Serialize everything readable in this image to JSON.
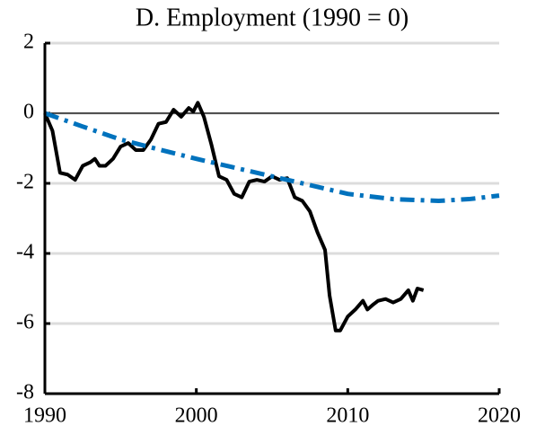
{
  "chart_data": {
    "type": "line",
    "title": "D. Employment (1990 = 0)",
    "xlim": [
      1990,
      2020
    ],
    "xticks": [
      1990,
      2000,
      2010,
      2020
    ],
    "ylim": [
      -8,
      2
    ],
    "yticks": [
      -8,
      -6,
      -4,
      -2,
      0,
      2
    ],
    "grid": true,
    "hline": 0,
    "series": [
      {
        "color": "#000000",
        "style": "solid",
        "x": [
          1990,
          1990.5,
          1991,
          1991.5,
          1992,
          1992.5,
          1993,
          1993.3,
          1993.6,
          1994,
          1994.5,
          1995,
          1995.5,
          1996,
          1996.5,
          1997,
          1997.5,
          1998,
          1998.5,
          1999,
          1999.5,
          1999.8,
          2000.1,
          2000.5,
          2001,
          2001.5,
          2002,
          2002.5,
          2003,
          2003.5,
          2004,
          2004.5,
          2005,
          2005.5,
          2006,
          2006.5,
          2007,
          2007.5,
          2008,
          2008.5,
          2008.8,
          2009.2,
          2009.5,
          2010,
          2010.5,
          2011,
          2011.3,
          2011.7,
          2012,
          2012.5,
          2013,
          2013.5,
          2014,
          2014.3,
          2014.6,
          2015
        ],
        "values": [
          0,
          -0.5,
          -1.7,
          -1.75,
          -1.9,
          -1.5,
          -1.4,
          -1.3,
          -1.5,
          -1.5,
          -1.3,
          -0.95,
          -0.85,
          -1.05,
          -1.05,
          -0.75,
          -0.3,
          -0.25,
          0.1,
          -0.1,
          0.15,
          0.05,
          0.3,
          -0.1,
          -0.9,
          -1.8,
          -1.9,
          -2.3,
          -2.4,
          -1.95,
          -1.9,
          -1.95,
          -1.8,
          -1.9,
          -1.85,
          -2.4,
          -2.5,
          -2.8,
          -3.4,
          -3.9,
          -5.2,
          -6.2,
          -6.2,
          -5.8,
          -5.6,
          -5.35,
          -5.6,
          -5.45,
          -5.35,
          -5.3,
          -5.4,
          -5.3,
          -5.05,
          -5.35,
          -5.0,
          -5.05
        ]
      },
      {
        "color": "#0072bd",
        "style": "dashdot",
        "x": [
          1990,
          1992.5,
          1995,
          1997.5,
          2000,
          2002.5,
          2005,
          2007.5,
          2010,
          2013,
          2016,
          2018,
          2020
        ],
        "values": [
          0,
          -0.38,
          -0.75,
          -1.03,
          -1.3,
          -1.55,
          -1.8,
          -2.05,
          -2.3,
          -2.45,
          -2.5,
          -2.45,
          -2.35
        ]
      }
    ]
  }
}
